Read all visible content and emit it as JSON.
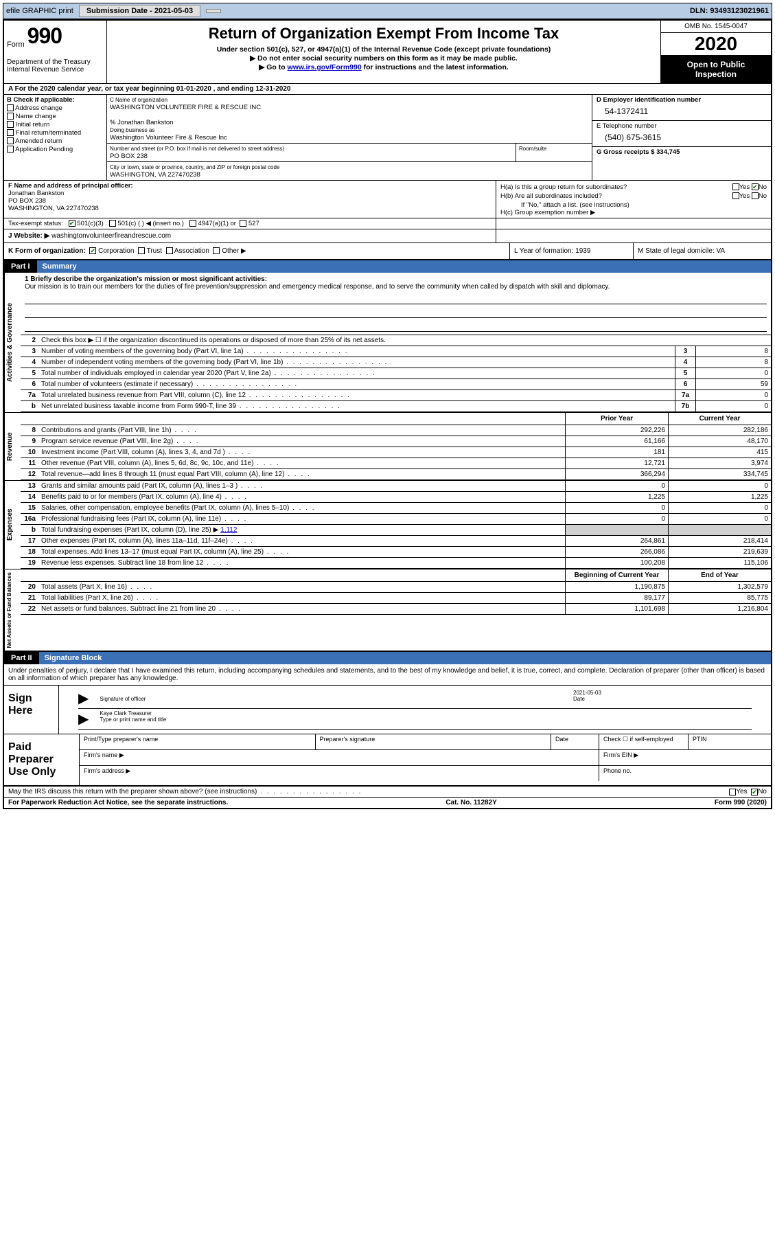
{
  "topbar": {
    "efile": "efile GRAPHIC print",
    "submission_label": "Submission Date - 2021-05-03",
    "dln": "DLN: 93493123021961"
  },
  "header": {
    "form_word": "Form",
    "form_num": "990",
    "dept": "Department of the Treasury",
    "irs": "Internal Revenue Service",
    "title": "Return of Organization Exempt From Income Tax",
    "sub1": "Under section 501(c), 527, or 4947(a)(1) of the Internal Revenue Code (except private foundations)",
    "sub2": "Do not enter social security numbers on this form as it may be made public.",
    "sub3_pre": "Go to ",
    "sub3_link": "www.irs.gov/Form990",
    "sub3_post": " for instructions and the latest information.",
    "omb": "OMB No. 1545-0047",
    "year": "2020",
    "open1": "Open to Public",
    "open2": "Inspection"
  },
  "period": {
    "text": "A For the 2020 calendar year, or tax year beginning 01-01-2020     , and ending 12-31-2020"
  },
  "section_b": {
    "label": "B Check if applicable:",
    "opts": [
      "Address change",
      "Name change",
      "Initial return",
      "Final return/terminated",
      "Amended return",
      "Application Pending"
    ]
  },
  "section_c": {
    "label": "C Name of organization",
    "org": "WASHINGTON VOLUNTEER FIRE & RESCUE INC",
    "care_of": "% Jonathan Bankston",
    "dba_label": "Doing business as",
    "dba": "Washington Volunteer Fire & Rescue Inc",
    "addr_label": "Number and street (or P.O. box if mail is not delivered to street address)",
    "room_label": "Room/suite",
    "addr": "PO BOX 238",
    "city_label": "City or town, state or province, country, and ZIP or foreign postal code",
    "city": "WASHINGTON, VA  227470238"
  },
  "section_d": {
    "ein_label": "D Employer identification number",
    "ein": "54-1372411",
    "phone_label": "E Telephone number",
    "phone": "(540) 675-3615",
    "gross_label": "G Gross receipts $ 334,745"
  },
  "section_f": {
    "label": "F  Name and address of principal officer:",
    "name": "Jonathan Bankston",
    "addr1": "PO BOX 238",
    "addr2": "WASHINGTON, VA  227470238"
  },
  "section_h": {
    "ha": "H(a)  Is this a group return for subordinates?",
    "hb": "H(b)  Are all subordinates included?",
    "hb_note": "If \"No,\" attach a list. (see instructions)",
    "hc": "H(c)  Group exemption number ▶"
  },
  "status": {
    "label": "Tax-exempt status:",
    "opt1": "501(c)(3)",
    "opt2": "501(c) (   ) ◀ (insert no.)",
    "opt3": "4947(a)(1) or",
    "opt4": "527"
  },
  "website": {
    "label": "J   Website: ▶",
    "value": "washingtonvolunteerfireandrescue.com"
  },
  "k": {
    "label": "K Form of organization:",
    "opts": [
      "Corporation",
      "Trust",
      "Association",
      "Other ▶"
    ]
  },
  "l": {
    "label": "L Year of formation: 1939"
  },
  "m": {
    "label": "M State of legal domicile: VA"
  },
  "part1": {
    "num": "Part I",
    "title": "Summary",
    "vlabels": {
      "gov": "Activities & Governance",
      "rev": "Revenue",
      "exp": "Expenses",
      "net": "Net Assets or Fund Balances"
    },
    "mission": {
      "label": "1   Briefly describe the organization's mission or most significant activities:",
      "text": "Our mission is to train our members for the duties of fire prevention/suppression and emergency medical response, and to serve the community when called by dispatch with skill and diplomacy."
    },
    "line2": "Check this box ▶ ☐  if the organization discontinued its operations or disposed of more than 25% of its net assets.",
    "lines_gov": [
      {
        "n": "3",
        "d": "Number of voting members of the governing body (Part VI, line 1a)",
        "box": "3",
        "v": "8"
      },
      {
        "n": "4",
        "d": "Number of independent voting members of the governing body (Part VI, line 1b)",
        "box": "4",
        "v": "8"
      },
      {
        "n": "5",
        "d": "Total number of individuals employed in calendar year 2020 (Part V, line 2a)",
        "box": "5",
        "v": "0"
      },
      {
        "n": "6",
        "d": "Total number of volunteers (estimate if necessary)",
        "box": "6",
        "v": "59"
      },
      {
        "n": "7a",
        "d": "Total unrelated business revenue from Part VIII, column (C), line 12",
        "box": "7a",
        "v": "0"
      },
      {
        "n": "b",
        "d": "Net unrelated business taxable income from Form 990-T, line 39",
        "box": "7b",
        "v": "0"
      }
    ],
    "col_prior": "Prior Year",
    "col_curr": "Current Year",
    "lines_rev": [
      {
        "n": "8",
        "d": "Contributions and grants (Part VIII, line 1h)",
        "p": "292,226",
        "c": "282,186"
      },
      {
        "n": "9",
        "d": "Program service revenue (Part VIII, line 2g)",
        "p": "61,166",
        "c": "48,170"
      },
      {
        "n": "10",
        "d": "Investment income (Part VIII, column (A), lines 3, 4, and 7d )",
        "p": "181",
        "c": "415"
      },
      {
        "n": "11",
        "d": "Other revenue (Part VIII, column (A), lines 5, 6d, 8c, 9c, 10c, and 11e)",
        "p": "12,721",
        "c": "3,974"
      },
      {
        "n": "12",
        "d": "Total revenue—add lines 8 through 11 (must equal Part VIII, column (A), line 12)",
        "p": "366,294",
        "c": "334,745"
      }
    ],
    "lines_exp": [
      {
        "n": "13",
        "d": "Grants and similar amounts paid (Part IX, column (A), lines 1–3 )",
        "p": "0",
        "c": "0"
      },
      {
        "n": "14",
        "d": "Benefits paid to or for members (Part IX, column (A), line 4)",
        "p": "1,225",
        "c": "1,225"
      },
      {
        "n": "15",
        "d": "Salaries, other compensation, employee benefits (Part IX, column (A), lines 5–10)",
        "p": "0",
        "c": "0"
      },
      {
        "n": "16a",
        "d": "Professional fundraising fees (Part IX, column (A), line 11e)",
        "p": "0",
        "c": "0"
      }
    ],
    "line16b": {
      "n": "b",
      "d": "Total fundraising expenses (Part IX, column (D), line 25) ▶",
      "link": "1,112"
    },
    "lines_exp2": [
      {
        "n": "17",
        "d": "Other expenses (Part IX, column (A), lines 11a–11d, 11f–24e)",
        "p": "264,861",
        "c": "218,414"
      },
      {
        "n": "18",
        "d": "Total expenses. Add lines 13–17 (must equal Part IX, column (A), line 25)",
        "p": "266,086",
        "c": "219,639"
      },
      {
        "n": "19",
        "d": "Revenue less expenses. Subtract line 18 from line 12",
        "p": "100,208",
        "c": "115,106"
      }
    ],
    "col_begin": "Beginning of Current Year",
    "col_end": "End of Year",
    "lines_net": [
      {
        "n": "20",
        "d": "Total assets (Part X, line 16)",
        "p": "1,190,875",
        "c": "1,302,579"
      },
      {
        "n": "21",
        "d": "Total liabilities (Part X, line 26)",
        "p": "89,177",
        "c": "85,775"
      },
      {
        "n": "22",
        "d": "Net assets or fund balances. Subtract line 21 from line 20",
        "p": "1,101,698",
        "c": "1,216,804"
      }
    ]
  },
  "part2": {
    "num": "Part II",
    "title": "Signature Block",
    "decl": "Under penalties of perjury, I declare that I have examined this return, including accompanying schedules and statements, and to the best of my knowledge and belief, it is true, correct, and complete. Declaration of preparer (other than officer) is based on all information of which preparer has any knowledge."
  },
  "sign": {
    "label": "Sign Here",
    "sig_of_officer": "Signature of officer",
    "date_label": "Date",
    "date": "2021-05-03",
    "name_title": "Kaye Clark  Treasurer",
    "type_label": "Type or print name and title"
  },
  "prep": {
    "label": "Paid Preparer Use Only",
    "print_name": "Print/Type preparer's name",
    "prep_sig": "Preparer's signature",
    "date": "Date",
    "check": "Check ☐  if self-employed",
    "ptin": "PTIN",
    "firm_name": "Firm's name    ▶",
    "firm_ein": "Firm's EIN ▶",
    "firm_addr": "Firm's address ▶",
    "phone": "Phone no."
  },
  "footer": {
    "discuss": "May the IRS discuss this return with the preparer shown above? (see instructions)",
    "paperwork": "For Paperwork Reduction Act Notice, see the separate instructions.",
    "cat": "Cat. No. 11282Y",
    "form": "Form 990 (2020)"
  }
}
